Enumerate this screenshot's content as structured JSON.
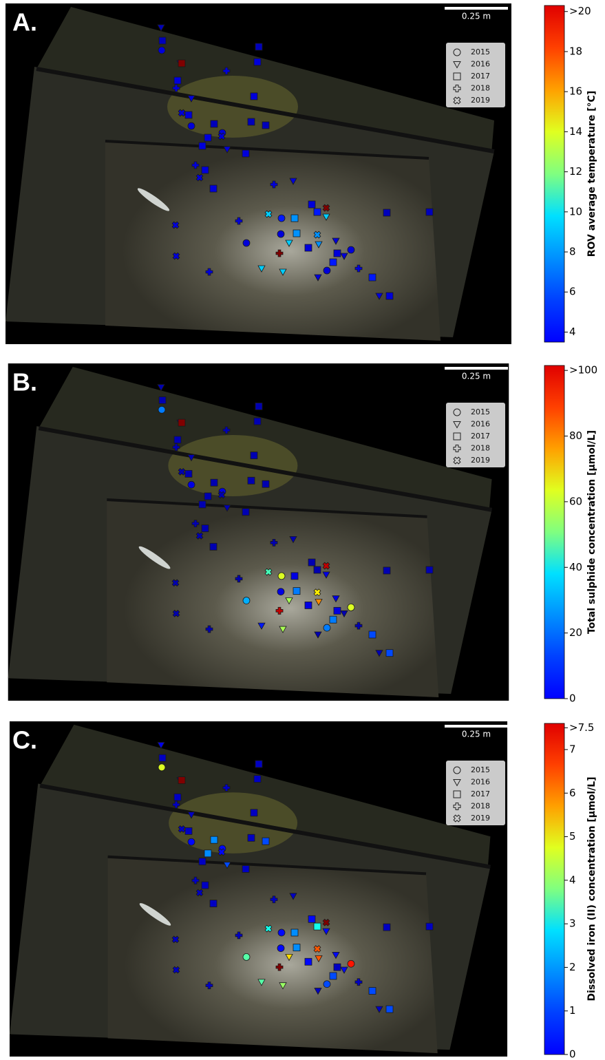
{
  "chart_data": [
    {
      "type": "scatter",
      "panel_label": "A.",
      "scale_bar": "0.25 m",
      "colorbar_label": "ROV average temperature [°C]",
      "colormap": "jet",
      "clim": [
        3.5,
        20.3
      ],
      "cticks": [
        4,
        6,
        8,
        10,
        12,
        14,
        16,
        18,
        {
          "value": 20,
          "label": ">20"
        }
      ],
      "series": [
        {
          "name": "2015",
          "marker": "circle",
          "values": [
            5,
            5,
            5,
            5,
            6,
            5,
            5,
            5
          ]
        },
        {
          "name": "2016",
          "marker": "triangle",
          "values": [
            4.5,
            5,
            5,
            5,
            5,
            9,
            8,
            9,
            9,
            9,
            5,
            5,
            5,
            5
          ]
        },
        {
          "name": "2017",
          "marker": "square",
          "values": [
            4.5,
            4.5,
            21,
            5,
            5,
            5,
            5,
            4.5,
            4.5,
            4.5,
            5,
            5,
            5,
            5,
            5,
            5,
            6,
            8,
            8,
            5,
            6,
            5,
            6,
            5,
            4.5,
            4.5
          ]
        },
        {
          "name": "2018",
          "marker": "plus",
          "values": [
            5,
            5,
            5,
            5,
            5,
            21,
            5,
            5
          ]
        },
        {
          "name": "2019",
          "marker": "cross",
          "values": [
            5,
            5,
            5,
            5,
            5,
            9,
            21,
            8
          ]
        }
      ]
    },
    {
      "type": "scatter",
      "panel_label": "B.",
      "scale_bar": "0.25 m",
      "colorbar_label": "Total sulphide concentration [µmol/L]",
      "colormap": "jet",
      "clim": [
        0,
        101.5
      ],
      "cticks": [
        0,
        20,
        40,
        60,
        80,
        {
          "value": 100,
          "label": ">100"
        }
      ],
      "series": [
        {
          "name": "2015",
          "marker": "circle",
          "values": [
            25,
            10,
            10,
            30,
            60,
            10,
            60,
            25
          ]
        },
        {
          "name": "2016",
          "marker": "triangle",
          "values": [
            5,
            5,
            5,
            5,
            5,
            10,
            75,
            55,
            15,
            55,
            10,
            5,
            5,
            5
          ]
        },
        {
          "name": "2017",
          "marker": "square",
          "values": [
            5,
            5,
            105,
            5,
            5,
            5,
            5,
            5,
            5,
            5,
            5,
            5,
            5,
            5,
            5,
            5,
            5,
            10,
            25,
            10,
            25,
            10,
            20,
            20,
            5,
            5
          ]
        },
        {
          "name": "2018",
          "marker": "plus",
          "values": [
            5,
            5,
            5,
            5,
            5,
            95,
            5,
            5
          ]
        },
        {
          "name": "2019",
          "marker": "cross",
          "values": [
            5,
            5,
            5,
            5,
            5,
            45,
            95,
            65
          ]
        }
      ]
    },
    {
      "type": "scatter",
      "panel_label": "C.",
      "scale_bar": "0.25 m",
      "colorbar_label": "Dissolved iron (II) concentration [µmol/L]",
      "colormap": "jet",
      "clim": [
        0,
        7.6
      ],
      "cticks": [
        0,
        1,
        2,
        3,
        4,
        5,
        6,
        7,
        {
          "value": 7.5,
          "label": ">7.5"
        }
      ],
      "series": [
        {
          "name": "2015",
          "marker": "circle",
          "values": [
            4.5,
            1,
            1,
            3.5,
            1,
            1,
            6.5,
            1.5
          ]
        },
        {
          "name": "2016",
          "marker": "triangle",
          "values": [
            0.8,
            0.5,
            0.5,
            1.5,
            0.5,
            1,
            6,
            5,
            3.5,
            4,
            1,
            0.5,
            0.5,
            1
          ]
        },
        {
          "name": "2017",
          "marker": "square",
          "values": [
            0.5,
            0.5,
            8,
            0.5,
            0.5,
            0.5,
            0.5,
            0.5,
            2,
            1.5,
            2,
            0.5,
            0.5,
            0.5,
            0.5,
            1,
            3,
            2,
            2,
            1,
            1.5,
            0.5,
            1.5,
            1.5,
            0.5,
            0.5
          ]
        },
        {
          "name": "2018",
          "marker": "plus",
          "values": [
            0.5,
            0.5,
            0.5,
            0.5,
            0.5,
            7.6,
            0.5,
            0.5
          ]
        },
        {
          "name": "2019",
          "marker": "cross",
          "values": [
            0.5,
            0.5,
            1,
            0.5,
            0.5,
            3,
            7.6,
            6
          ]
        }
      ]
    }
  ]
}
